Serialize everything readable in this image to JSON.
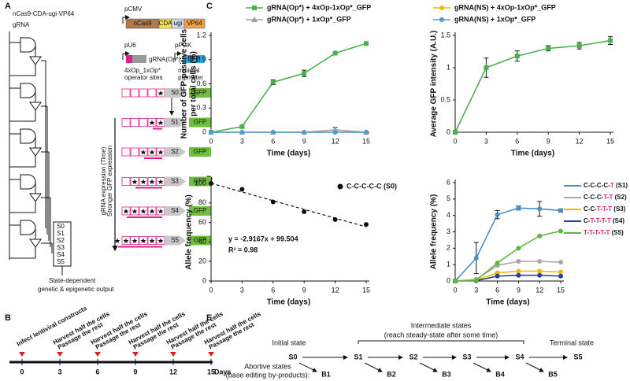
{
  "panel_labels": [
    "A",
    "B",
    "C",
    "D",
    "E"
  ],
  "circuit": {
    "protein": "nCas9-CDA-ugi-VP64",
    "guide": "gRNA",
    "output_states": [
      "S0",
      "S1",
      "S2",
      "S3",
      "S4",
      "S5"
    ],
    "output_label": [
      "State-dependent",
      "genetic & epigenetic output"
    ]
  },
  "constructs": {
    "promoter1": "pCMV",
    "parts": [
      "nCas9",
      "CDA",
      "ugi",
      "VP64"
    ],
    "promoter2": "pU6",
    "promoter3": "pPGK",
    "grna": "gRNA(Op*)",
    "marker": "BFP",
    "sites_label": [
      "4xOp_1xOp*",
      "operator sites"
    ],
    "min_promoter": [
      "minimal",
      "promoter"
    ],
    "reporter": "GFP",
    "states": [
      "S0",
      "S1",
      "S2",
      "S3",
      "S4",
      "S5"
    ],
    "arrow_labels": [
      "gRNA expression (Time)",
      "Stronger GFP expression"
    ]
  },
  "timeline": {
    "start": "Infect lentiviral constructs",
    "step": [
      "Harvest half the cells",
      "Passage the rest"
    ],
    "days": [
      0,
      3,
      6,
      9,
      12,
      15
    ],
    "unit": "Days"
  },
  "chart_data": [
    {
      "type": "line",
      "ylabel": [
        "Number of GFP-positive cells",
        "per total cells (%)"
      ],
      "xlabel": "Time (days)",
      "x": [
        0,
        3,
        6,
        9,
        12,
        15
      ],
      "xlim": [
        0,
        15
      ],
      "xticks": [
        0,
        3,
        6,
        9,
        12,
        15
      ],
      "ylim": [
        0,
        1.2
      ],
      "yticks": [
        0,
        0.3,
        0.6,
        0.9,
        1.2
      ],
      "series": [
        {
          "name": "gRNA(Op*) + 4xOp-1xOp*_GFP",
          "color": "#4caf50",
          "marker": "square",
          "values": [
            0,
            0.07,
            0.62,
            0.73,
            0.98,
            1.1
          ],
          "errors": [
            0,
            0.01,
            0.03,
            0.04,
            0.01,
            0.01
          ]
        },
        {
          "name": "gRNA(Op*) + 1xOp*_GFP",
          "color": "#a0a0a0",
          "marker": "triangle",
          "values": [
            0,
            0,
            0,
            0,
            0.03,
            0
          ],
          "errors": [
            0,
            0,
            0,
            0,
            0.03,
            0
          ]
        },
        {
          "name": "gRNA(NS) + 4xOp-1xOp*_GFP",
          "color": "#f5b800",
          "marker": "circle",
          "values": [
            0,
            0,
            0,
            0,
            0,
            0
          ]
        },
        {
          "name": "gRNA(NS) + 1xOp*_GFP",
          "color": "#4a9be0",
          "marker": "circle",
          "values": [
            0,
            0,
            0,
            0,
            0,
            0
          ]
        }
      ]
    },
    {
      "type": "line",
      "ylabel": [
        "Average GFP intensity (A.U.)"
      ],
      "xlabel": "Time (days)",
      "x": [
        0,
        3,
        6,
        9,
        12,
        15
      ],
      "xlim": [
        0,
        15
      ],
      "xticks": [
        0,
        3,
        6,
        9,
        12,
        15
      ],
      "ylim": [
        0,
        1.5
      ],
      "yticks": [
        0,
        0.5,
        1,
        1.5
      ],
      "series": [
        {
          "color": "#4caf50",
          "marker": "square",
          "values": [
            0,
            1.0,
            1.18,
            1.3,
            1.34,
            1.42
          ],
          "errors": [
            0,
            0.15,
            0.08,
            0.04,
            0.05,
            0.06
          ]
        }
      ]
    },
    {
      "type": "scatter",
      "ylabel": [
        "Allele frequency (%)"
      ],
      "xlabel": "Time (days)",
      "x": [
        0,
        3,
        6,
        9,
        12,
        15
      ],
      "xlim": [
        0,
        15
      ],
      "xticks": [
        0,
        3,
        6,
        9,
        12,
        15
      ],
      "ylim": [
        0,
        100
      ],
      "yticks": [
        0,
        20,
        40,
        60,
        80,
        100
      ],
      "trendline": "linear",
      "annotations": [
        "y = -2.9167x + 99.504",
        "R² = 0.98"
      ],
      "series": [
        {
          "name": "C-C-C-C-C (S0)",
          "color": "#111111",
          "values": [
            100,
            94,
            81,
            71,
            63,
            58
          ]
        }
      ]
    },
    {
      "type": "line",
      "ylabel": [
        "Allele frequency (%)"
      ],
      "xlabel": "Time (days)",
      "x": [
        0,
        3,
        6,
        9,
        12,
        15
      ],
      "xlim": [
        0,
        15
      ],
      "xticks": [
        0,
        3,
        6,
        9,
        12,
        15
      ],
      "ylim": [
        0,
        6
      ],
      "yticks": [
        0,
        1,
        2,
        3,
        4,
        5,
        6
      ],
      "series": [
        {
          "name": "C-C-C-C-T (S1)",
          "color": "#4a90c8",
          "marker": "circle",
          "values": [
            0,
            1.4,
            4.05,
            4.45,
            4.4,
            4.3
          ],
          "errors": [
            0.1,
            0.95,
            0.25,
            0.12,
            0.45,
            0.1
          ]
        },
        {
          "name": "C-C-C-T-T (S2)",
          "color": "#a8a8a8",
          "marker": "circle",
          "values": [
            0,
            0.1,
            0.95,
            1.2,
            1.2,
            1.15
          ]
        },
        {
          "name": "C-C-T-T-T (S3)",
          "color": "#f5b800",
          "marker": "circle",
          "values": [
            0,
            0.05,
            0.5,
            0.6,
            0.6,
            0.55
          ]
        },
        {
          "name": "C-T-T-T-T (S4)",
          "color": "#2c3e9c",
          "marker": "circle",
          "values": [
            0,
            0.02,
            0.3,
            0.35,
            0.35,
            0.3
          ]
        },
        {
          "name": "T-T-T-T-T (S5)",
          "color": "#5cb83c",
          "marker": "circle",
          "values": [
            0,
            0.05,
            1.1,
            2.0,
            2.75,
            3.05
          ]
        }
      ]
    }
  ],
  "states": {
    "initial": "Initial state",
    "intermediate": [
      "Intermediate states",
      "(reach steady-state after some time)"
    ],
    "terminal": "Terminal state",
    "main": [
      "S0",
      "S1",
      "S2",
      "S3",
      "S4",
      "S5"
    ],
    "abortive_label": [
      "Abortive states",
      "(base editing by-products):"
    ],
    "abortive": [
      "B1",
      "B2",
      "B3",
      "B4",
      "B5"
    ]
  }
}
